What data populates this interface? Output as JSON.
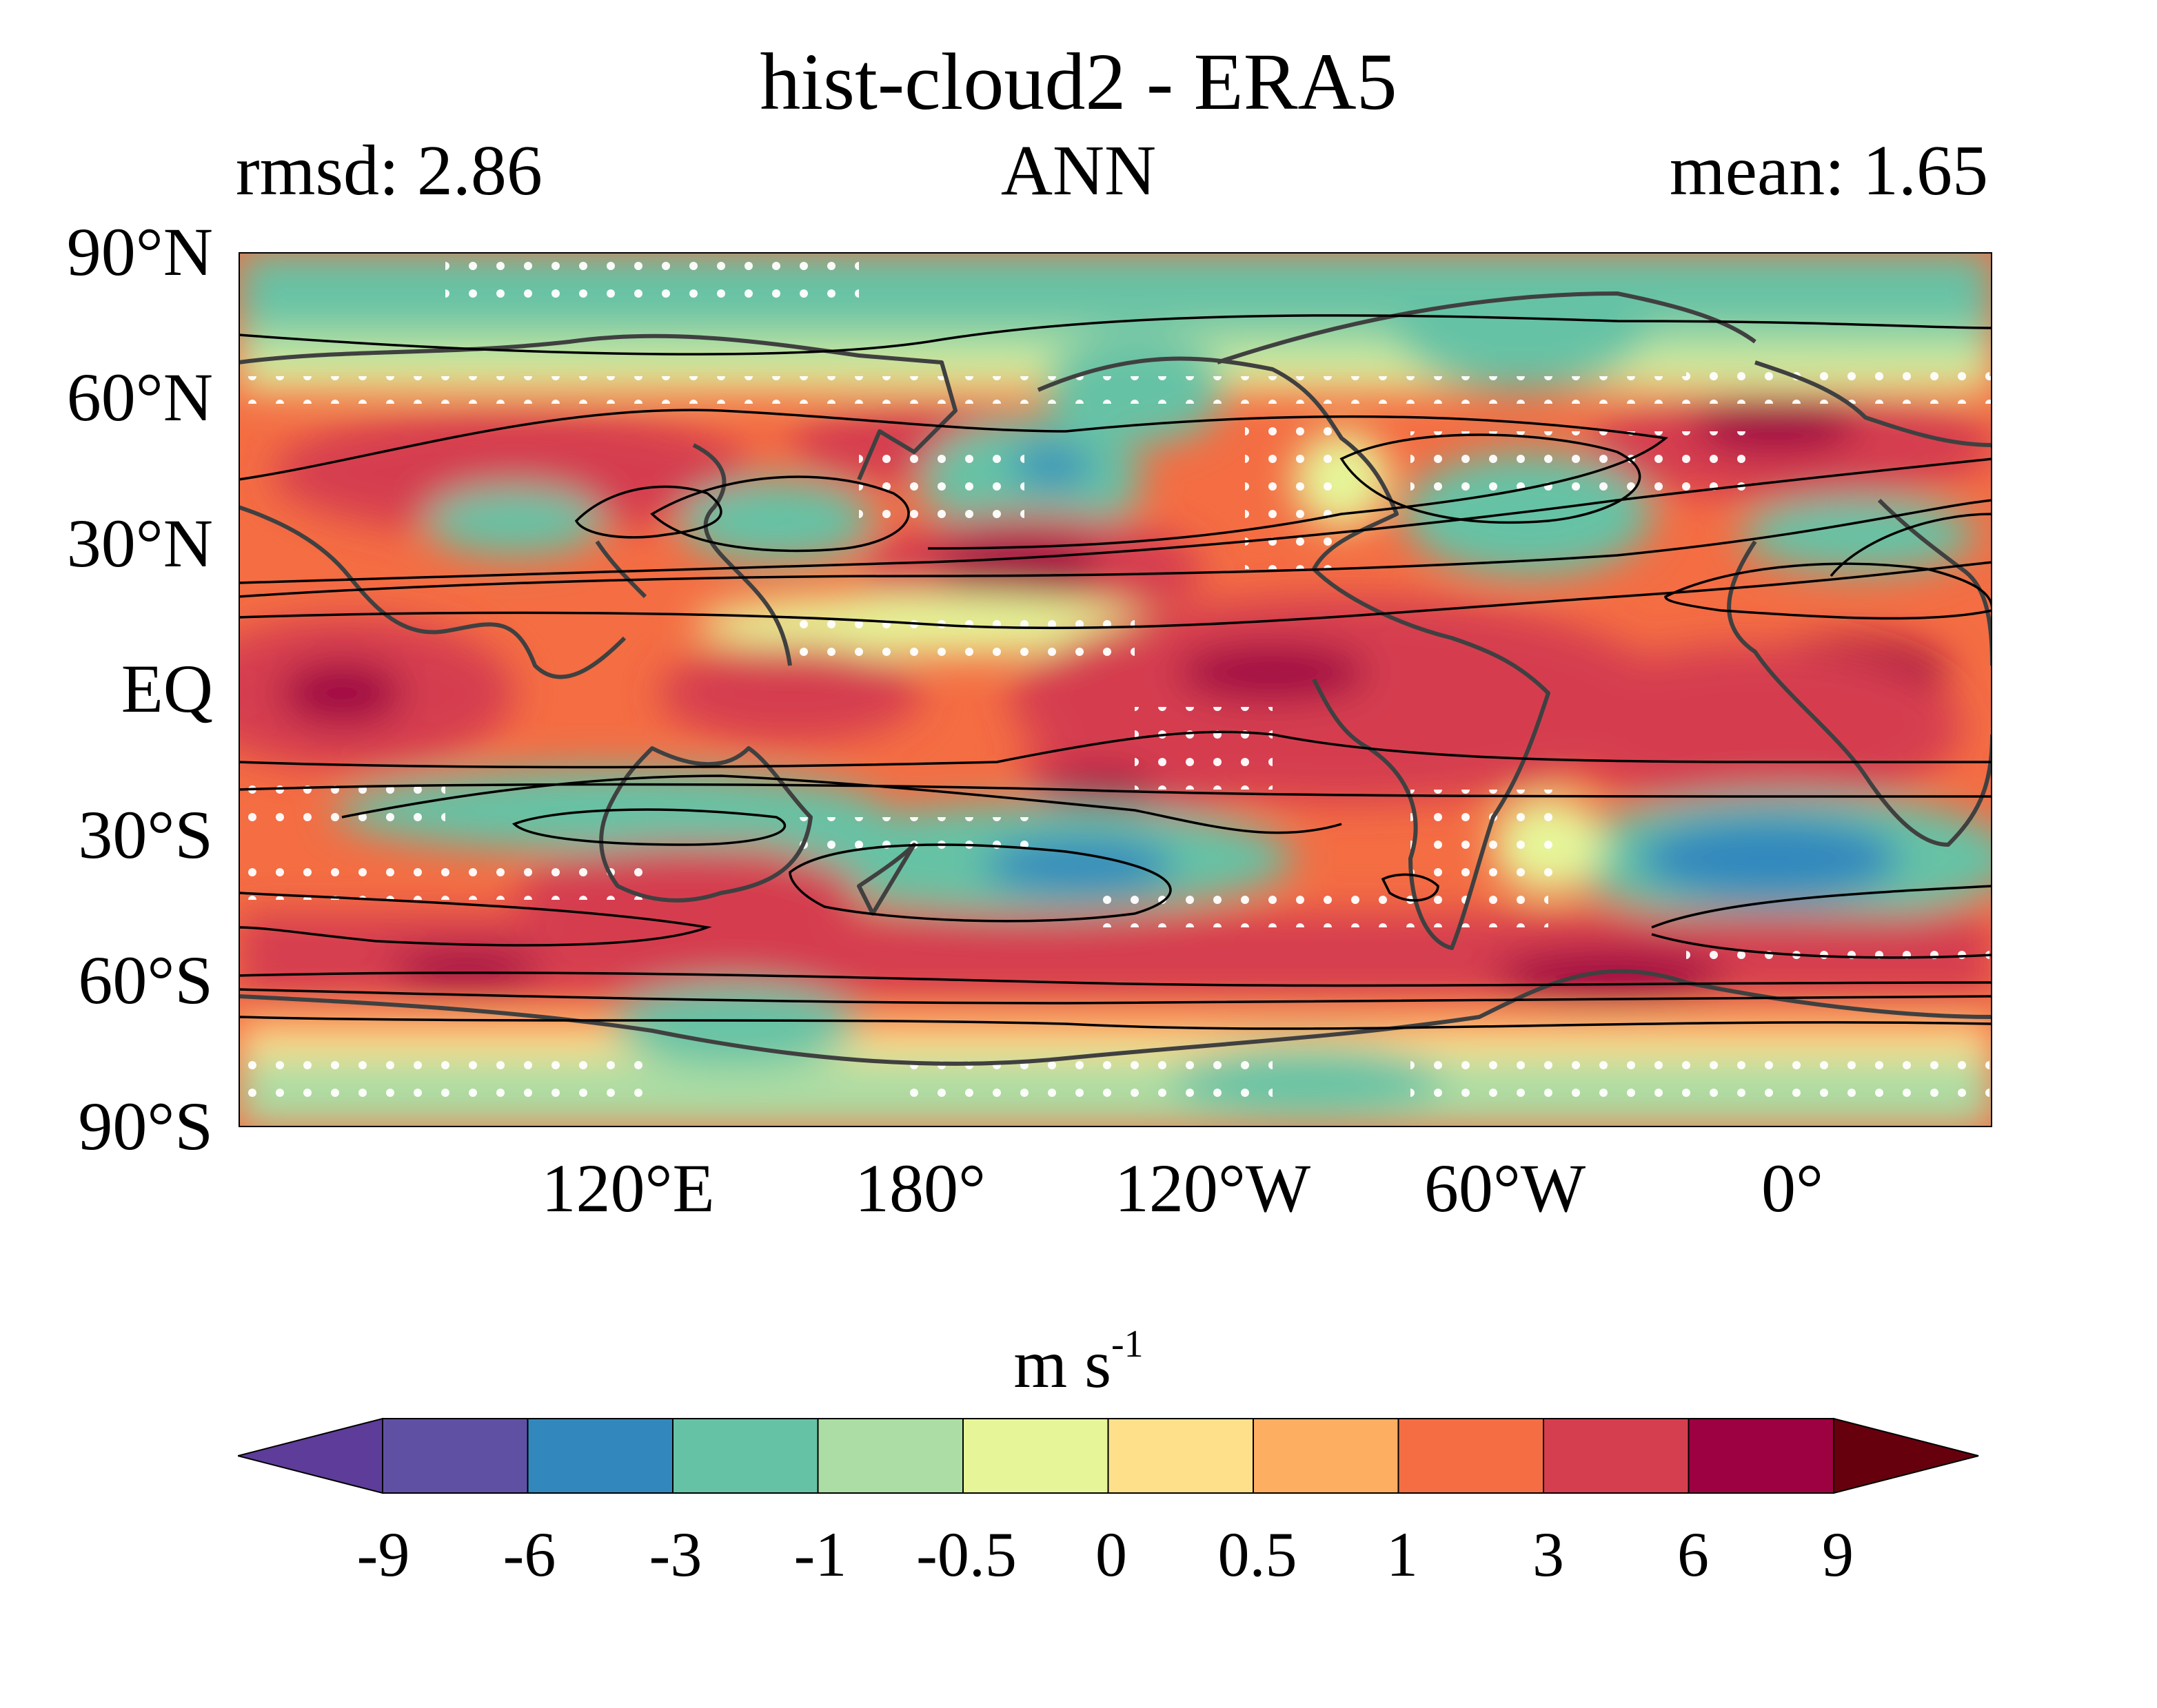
{
  "title": "hist-cloud2 - ERA5",
  "left_label": "rmsd: 2.86",
  "center_label": "ANN",
  "right_label": "mean: 1.65",
  "units": {
    "text": "m s",
    "exponent": "-1"
  },
  "lat_ticks": [
    "90°N",
    "60°N",
    "30°N",
    "EQ",
    "30°S",
    "60°S",
    "90°S"
  ],
  "lon_ticks": [
    "120°E",
    "180°",
    "120°W",
    "60°W",
    "0°"
  ],
  "colorbar": {
    "labels": [
      "-9",
      "-6",
      "-3",
      "-1",
      "-0.5",
      "0",
      "0.5",
      "1",
      "3",
      "6",
      "9"
    ],
    "colors": [
      "#5e3c99",
      "#6050a4",
      "#3288bd",
      "#66c2a5",
      "#abdda4",
      "#e6f598",
      "#fee08b",
      "#fdae61",
      "#f46d43",
      "#d53e4f",
      "#9e0142",
      "#67000d"
    ],
    "extend": "both"
  },
  "map_extent": {
    "lon": [
      40,
      400
    ],
    "lat": [
      -90,
      90
    ]
  }
}
